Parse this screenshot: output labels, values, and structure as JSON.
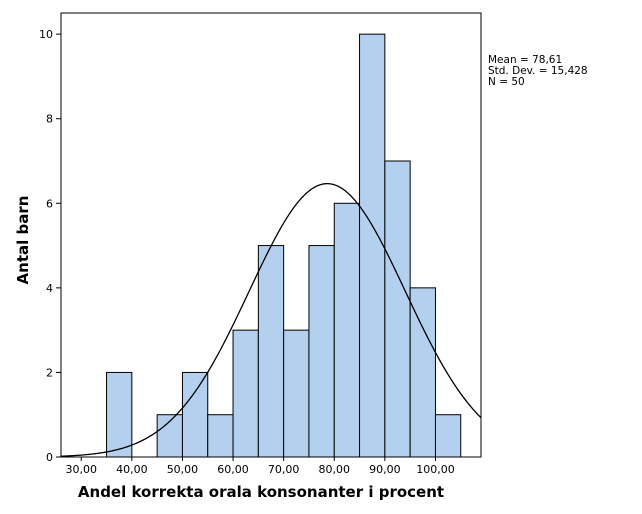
{
  "chart_data": {
    "type": "bar",
    "title": "",
    "xlabel": "Andel korrekta orala konsonanter i procent",
    "ylabel": "Antal barn",
    "bin_width": 5,
    "bins": [
      {
        "start": 35,
        "end": 40,
        "count": 2
      },
      {
        "start": 40,
        "end": 45,
        "count": 0
      },
      {
        "start": 45,
        "end": 50,
        "count": 1
      },
      {
        "start": 50,
        "end": 55,
        "count": 2
      },
      {
        "start": 55,
        "end": 60,
        "count": 1
      },
      {
        "start": 60,
        "end": 65,
        "count": 3
      },
      {
        "start": 65,
        "end": 70,
        "count": 5
      },
      {
        "start": 70,
        "end": 75,
        "count": 3
      },
      {
        "start": 75,
        "end": 80,
        "count": 5
      },
      {
        "start": 80,
        "end": 85,
        "count": 6
      },
      {
        "start": 85,
        "end": 90,
        "count": 10
      },
      {
        "start": 90,
        "end": 95,
        "count": 7
      },
      {
        "start": 95,
        "end": 100,
        "count": 4
      },
      {
        "start": 100,
        "end": 105,
        "count": 1
      }
    ],
    "xlim": [
      26,
      109
    ],
    "ylim": [
      0,
      10.5
    ],
    "x_ticks": [
      30,
      40,
      50,
      60,
      70,
      80,
      90,
      100
    ],
    "x_tick_labels": [
      "30,00",
      "40,00",
      "50,00",
      "60,00",
      "70,00",
      "80,00",
      "90,00",
      "100,00"
    ],
    "y_ticks": [
      0,
      2,
      4,
      6,
      8,
      10
    ],
    "y_tick_labels": [
      "0",
      "2",
      "4",
      "6",
      "8",
      "10"
    ],
    "normal_curve": {
      "mean": 78.61,
      "std": 15.428,
      "n": 50
    },
    "stats_text": [
      "Mean = 78,61",
      "Std. Dev. = 15,428",
      "N = 50"
    ],
    "bar_color": "#b3d1ef",
    "grid": false,
    "legend_position": "right"
  }
}
